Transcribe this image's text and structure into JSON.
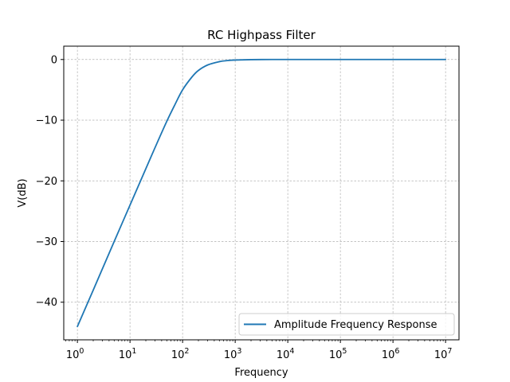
{
  "chart_data": {
    "type": "line",
    "title": "RC Highpass Filter",
    "xlabel": "Frequency",
    "ylabel": "V(dB)",
    "x_scale": "log",
    "xlim": [
      0.55,
      18000000
    ],
    "ylim": [
      -46.2,
      2.2
    ],
    "x_ticks": [
      {
        "value": 1,
        "mant": "10",
        "exp": "0"
      },
      {
        "value": 10,
        "mant": "10",
        "exp": "1"
      },
      {
        "value": 100,
        "mant": "10",
        "exp": "2"
      },
      {
        "value": 1000,
        "mant": "10",
        "exp": "3"
      },
      {
        "value": 10000,
        "mant": "10",
        "exp": "4"
      },
      {
        "value": 100000,
        "mant": "10",
        "exp": "5"
      },
      {
        "value": 1000000,
        "mant": "10",
        "exp": "6"
      },
      {
        "value": 10000000,
        "mant": "10",
        "exp": "7"
      }
    ],
    "y_ticks": [
      {
        "value": 0,
        "label": "0"
      },
      {
        "value": -10,
        "label": "−10"
      },
      {
        "value": -20,
        "label": "−20"
      },
      {
        "value": -30,
        "label": "−30"
      },
      {
        "value": -40,
        "label": "−40"
      }
    ],
    "grid": true,
    "legend_position": "lower-right",
    "series": [
      {
        "name": "Amplitude Frequency Response",
        "color": "#1f77b4",
        "x": [
          1,
          2,
          5,
          10,
          20,
          30,
          50,
          70,
          100,
          150,
          200,
          300,
          500,
          700,
          1000,
          2000,
          5000,
          10000,
          100000,
          1000000,
          10000000
        ],
        "y": [
          -44.0,
          -38.0,
          -30.0,
          -24.0,
          -18.0,
          -14.5,
          -10.2,
          -7.6,
          -5.0,
          -2.9,
          -1.8,
          -0.9,
          -0.35,
          -0.18,
          -0.09,
          -0.02,
          0.0,
          0.0,
          0.0,
          0.0,
          0.0
        ]
      }
    ]
  }
}
